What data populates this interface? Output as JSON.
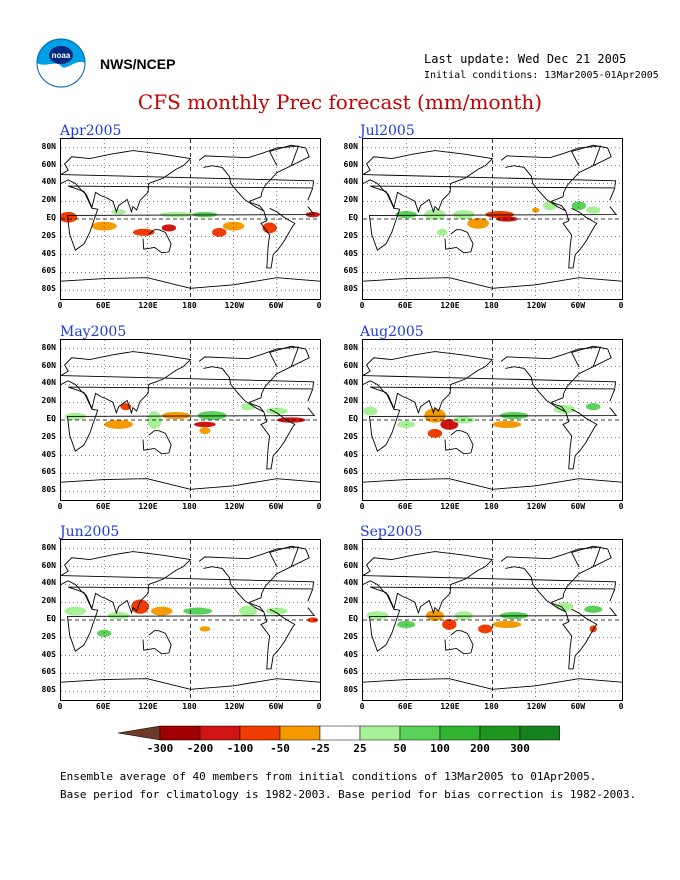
{
  "header": {
    "agency": "NWS/NCEP",
    "last_update": "Last update: Wed Dec 21 2005",
    "initial_conditions": "Initial conditions: 13Mar2005-01Apr2005",
    "title": "CFS monthly Prec forecast (mm/month)"
  },
  "logo": {
    "icon": "noaa-logo-icon",
    "text": "noaa"
  },
  "panels": [
    {
      "label": "Apr2005"
    },
    {
      "label": "Jul2005"
    },
    {
      "label": "May2005"
    },
    {
      "label": "Aug2005"
    },
    {
      "label": "Jun2005"
    },
    {
      "label": "Sep2005"
    }
  ],
  "lat_labels": [
    "80N",
    "60N",
    "40N",
    "20N",
    "EQ",
    "20S",
    "40S",
    "60S",
    "80S"
  ],
  "lon_labels": [
    "0",
    "60E",
    "120E",
    "180",
    "120W",
    "60W",
    "0"
  ],
  "colorbar": {
    "labels": [
      "-300",
      "-200",
      "-100",
      "-50",
      "-25",
      "25",
      "50",
      "100",
      "200",
      "300"
    ],
    "colors": [
      "#6e3a28",
      "#a00000",
      "#d01414",
      "#f03c00",
      "#f59a00",
      "#ffffff",
      "#a6f096",
      "#5ad25a",
      "#32b432",
      "#1e961e",
      "#14821e",
      "#1e6ee6"
    ]
  },
  "footer": {
    "line1": "Ensemble average of 40 members from initial conditions of 13Mar2005 to 01Apr2005.",
    "line2": "Base period for climatology is 1982-2003. Base period for bias correction is 1982-2003."
  }
}
